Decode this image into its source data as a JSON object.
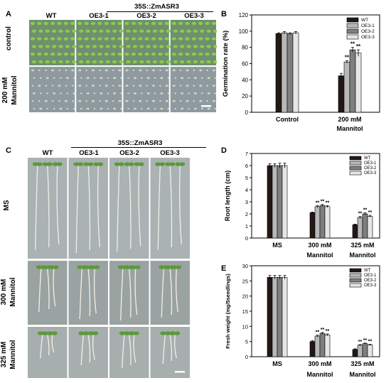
{
  "panels": {
    "A": {
      "label": "A",
      "construct": "35S::ZmASR3",
      "columns": [
        "WT",
        "OE3-1",
        "OE3-2",
        "OE3-3"
      ],
      "rows": [
        "control",
        "200 mM\nMannitol"
      ],
      "row_lines": [
        [
          "control"
        ],
        [
          "200 mM",
          "Mannitol"
        ]
      ],
      "colors": {
        "control_bg": "#6f8f70",
        "mannitol_bg": "#8f9aa0",
        "seedling": "#8ccf46"
      }
    },
    "C": {
      "label": "C",
      "construct": "35S::ZmASR3",
      "columns": [
        "WT",
        "OE3-1",
        "OE3-2",
        "OE3-3"
      ],
      "rows": [
        "MS",
        "300 mM\nMannitol",
        "325 mM\nMannitol"
      ],
      "row_lines": [
        [
          "MS"
        ],
        [
          "300 mM",
          "Mannitol"
        ],
        [
          "325 mM",
          "Mannitol"
        ]
      ],
      "colors": {
        "bg_top": "#aab2b3",
        "bg_mid": "#9aa3a1",
        "bg_bottom": "#a7aeae",
        "leaf": "#5a9a3a",
        "root": "#f2f0e6"
      }
    },
    "B": {
      "label": "B"
    },
    "D": {
      "label": "D"
    },
    "E": {
      "label": "E"
    }
  },
  "chart_data": [
    {
      "panel": "B",
      "type": "bar",
      "ylabel": "Germination rate (%)",
      "ylim": [
        0,
        120
      ],
      "yticks": [
        0,
        20,
        40,
        60,
        80,
        100,
        120
      ],
      "categories": [
        "Control",
        "200 mM\nMannitol"
      ],
      "category_lines": [
        [
          "Control"
        ],
        [
          "200 mM",
          "Mannitol"
        ]
      ],
      "legend_position": "top-right",
      "series": [
        {
          "name": "WT",
          "color": "#231815",
          "values": [
            97,
            45
          ],
          "errors": [
            1,
            3
          ],
          "sig": [
            "",
            ""
          ]
        },
        {
          "name": "OE3-1",
          "color": "#b8b8b8",
          "values": [
            98,
            62
          ],
          "errors": [
            1.5,
            1.5
          ],
          "sig": [
            "",
            "**"
          ]
        },
        {
          "name": "OE3-2",
          "color": "#7f7f7f",
          "values": [
            97,
            77
          ],
          "errors": [
            1,
            3
          ],
          "sig": [
            "",
            "**"
          ]
        },
        {
          "name": "OE3-3",
          "color": "#e6e6e6",
          "values": [
            98,
            73
          ],
          "errors": [
            1.5,
            4
          ],
          "sig": [
            "",
            "**"
          ]
        }
      ]
    },
    {
      "panel": "D",
      "type": "bar",
      "ylabel": "Root length (cm)",
      "ylim": [
        0,
        7
      ],
      "yticks": [
        0,
        1,
        2,
        3,
        4,
        5,
        6,
        7
      ],
      "categories": [
        "MS",
        "300 mM\nMannitol",
        "325 mM\nMannitol"
      ],
      "category_lines": [
        [
          "MS"
        ],
        [
          "300 mM",
          "Mannitol"
        ],
        [
          "325 mM",
          "Mannitol"
        ]
      ],
      "legend_position": "top-right",
      "series": [
        {
          "name": "WT",
          "color": "#231815",
          "values": [
            6.0,
            2.1,
            1.1
          ],
          "errors": [
            0.15,
            0.05,
            0.05
          ],
          "sig": [
            "",
            "",
            ""
          ]
        },
        {
          "name": "OE3-1",
          "color": "#b8b8b8",
          "values": [
            6.0,
            2.6,
            1.7
          ],
          "errors": [
            0.15,
            0.08,
            0.08
          ],
          "sig": [
            "",
            "**",
            "**"
          ]
        },
        {
          "name": "OE3-2",
          "color": "#7f7f7f",
          "values": [
            6.0,
            2.7,
            2.0
          ],
          "errors": [
            0.2,
            0.08,
            0.08
          ],
          "sig": [
            "",
            "**",
            "**"
          ]
        },
        {
          "name": "OE3-3",
          "color": "#e6e6e6",
          "values": [
            6.0,
            2.6,
            1.8
          ],
          "errors": [
            0.2,
            0.08,
            0.08
          ],
          "sig": [
            "",
            "**",
            "**"
          ]
        }
      ]
    },
    {
      "panel": "E",
      "type": "bar",
      "ylabel": "Fresh weight (mg/5seedlings)",
      "ylim": [
        0,
        30
      ],
      "yticks": [
        0,
        5,
        10,
        15,
        20,
        25,
        30
      ],
      "categories": [
        "MS",
        "300 mM\nMannitol",
        "325 mM\nMannitol"
      ],
      "category_lines": [
        [
          "MS"
        ],
        [
          "300 mM",
          "Mannitol"
        ],
        [
          "325 mM",
          "Mannitol"
        ]
      ],
      "legend_position": "top-right",
      "series": [
        {
          "name": "WT",
          "color": "#231815",
          "values": [
            26.2,
            5.0,
            2.4
          ],
          "errors": [
            0.6,
            0.3,
            0.2
          ],
          "sig": [
            "",
            "",
            ""
          ]
        },
        {
          "name": "OE3-1",
          "color": "#b8b8b8",
          "values": [
            26.2,
            6.8,
            3.8
          ],
          "errors": [
            0.6,
            0.3,
            0.2
          ],
          "sig": [
            "",
            "**",
            "**"
          ]
        },
        {
          "name": "OE3-2",
          "color": "#7f7f7f",
          "values": [
            26.2,
            7.7,
            4.3
          ],
          "errors": [
            0.6,
            0.3,
            0.2
          ],
          "sig": [
            "",
            "**",
            "**"
          ]
        },
        {
          "name": "OE3-3",
          "color": "#e6e6e6",
          "values": [
            26.2,
            7.2,
            3.9
          ],
          "errors": [
            0.6,
            0.3,
            0.2
          ],
          "sig": [
            "",
            "**",
            "**"
          ]
        }
      ]
    }
  ]
}
